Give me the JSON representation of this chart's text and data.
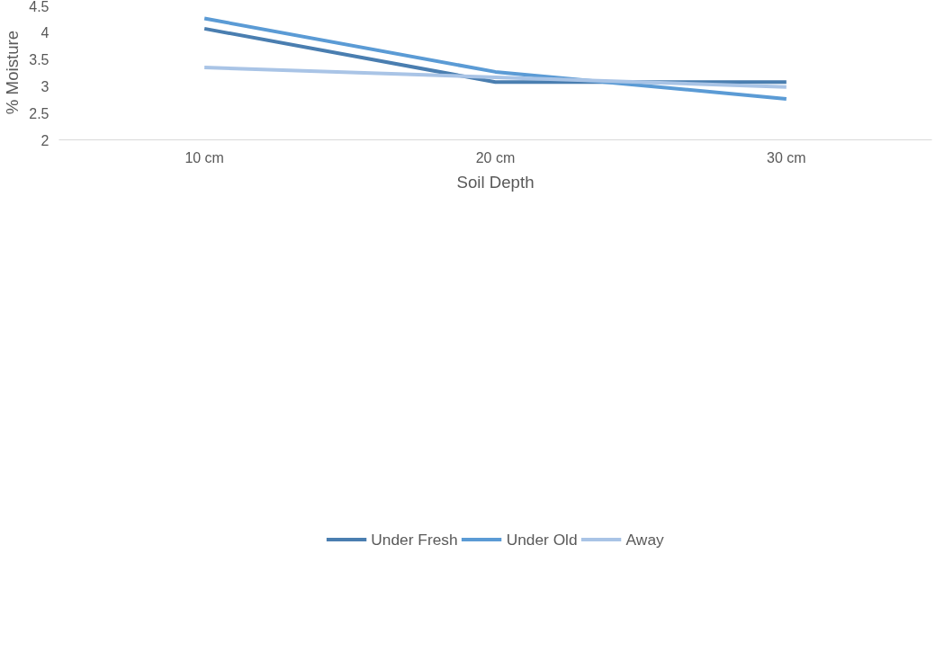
{
  "chart_data": {
    "type": "line",
    "xlabel": "Soil Depth",
    "ylabel": "% Moisture",
    "categories": [
      "10 cm",
      "20 cm",
      "30 cm"
    ],
    "series": [
      {
        "name": "Under Fresh",
        "color": "#4a7eb0",
        "values": [
          4.06,
          3.07,
          3.07
        ]
      },
      {
        "name": "Under Old",
        "color": "#5b9bd5",
        "values": [
          4.25,
          3.26,
          2.76
        ]
      },
      {
        "name": "Away",
        "color": "#a9c4e6",
        "values": [
          3.34,
          3.16,
          2.98
        ]
      }
    ],
    "ylim": [
      2,
      4.5
    ],
    "yticks": [
      2,
      2.5,
      3,
      3.5,
      4,
      4.5
    ],
    "grid": false,
    "legend": "bottom",
    "marker": "none",
    "line_style": "solid"
  }
}
